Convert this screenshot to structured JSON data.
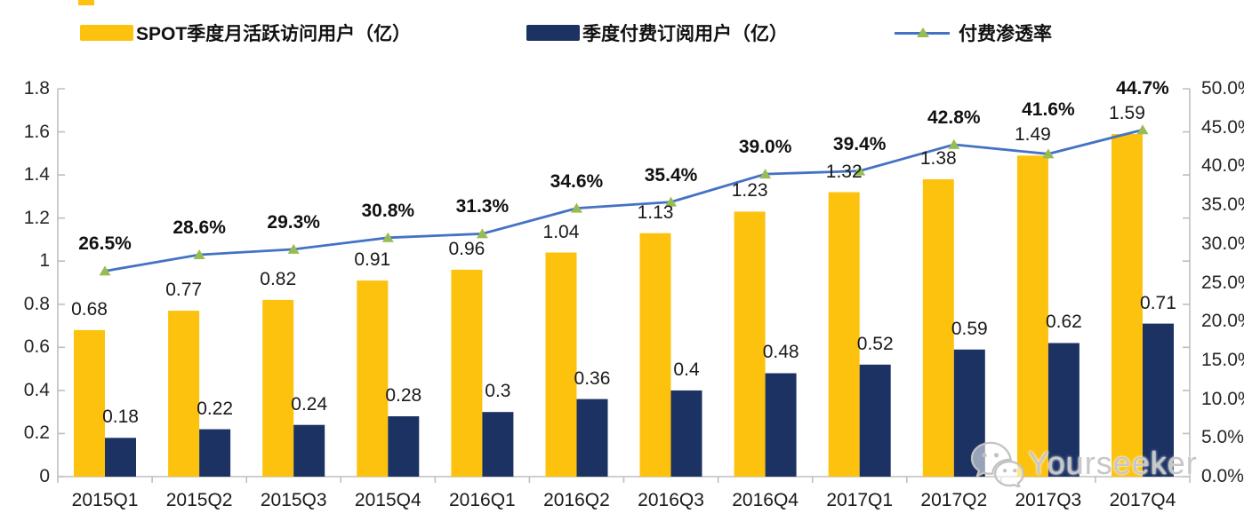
{
  "legend": {
    "items": [
      {
        "label": "SPOT季度月活跃访问用户（亿）",
        "swatch": "bar",
        "color": "#FCC20E"
      },
      {
        "label": "季度付费订阅用户（亿）",
        "swatch": "bar",
        "color": "#1C3263"
      },
      {
        "label": "付费渗透率",
        "swatch": "line",
        "line_color": "#4472C4",
        "marker": "triangle-up",
        "marker_color": "#97BC53"
      }
    ]
  },
  "watermark": {
    "icon": "wechat-icon",
    "text": "Yourseeker"
  },
  "chart_data": {
    "type": "bar",
    "subtype": "grouped-bars-plus-line-dual-axis",
    "title": "",
    "categories": [
      "2015Q1",
      "2015Q2",
      "2015Q3",
      "2015Q4",
      "2016Q1",
      "2016Q2",
      "2016Q3",
      "2016Q4",
      "2017Q1",
      "2017Q2",
      "2017Q3",
      "2017Q4"
    ],
    "series": [
      {
        "name": "SPOT季度月活跃访问用户（亿）",
        "type": "bar",
        "yaxis": "left",
        "color": "#FCC20E",
        "values": [
          0.68,
          0.77,
          0.82,
          0.91,
          0.96,
          1.04,
          1.13,
          1.23,
          1.32,
          1.38,
          1.49,
          1.59
        ],
        "labels": [
          "0.68",
          "0.77",
          "0.82",
          "0.91",
          "0.96",
          "1.04",
          "1.13",
          "1.23",
          "1.32",
          "1.38",
          "1.49",
          "1.59"
        ]
      },
      {
        "name": "季度付费订阅用户（亿）",
        "type": "bar",
        "yaxis": "left",
        "color": "#1C3263",
        "values": [
          0.18,
          0.22,
          0.24,
          0.28,
          0.3,
          0.36,
          0.4,
          0.48,
          0.52,
          0.59,
          0.62,
          0.71
        ],
        "labels": [
          "0.18",
          "0.22",
          "0.24",
          "0.28",
          "0.3",
          "0.36",
          "0.4",
          "0.48",
          "0.52",
          "0.59",
          "0.62",
          "0.71"
        ]
      },
      {
        "name": "付费渗透率",
        "type": "line",
        "yaxis": "right",
        "color": "#4472C4",
        "marker": "triangle-up",
        "marker_color": "#97BC53",
        "values": [
          26.5,
          28.6,
          29.3,
          30.8,
          31.3,
          34.6,
          35.4,
          39.0,
          39.4,
          42.8,
          41.6,
          44.7
        ],
        "labels": [
          "26.5%",
          "28.6%",
          "29.3%",
          "30.8%",
          "31.3%",
          "34.6%",
          "35.4%",
          "39.0%",
          "39.4%",
          "42.8%",
          "41.6%",
          "44.7%"
        ]
      }
    ],
    "left_axis": {
      "min": 0,
      "max": 1.8,
      "step": 0.2,
      "tick_labels": [
        "0",
        "0.2",
        "0.4",
        "0.6",
        "0.8",
        "1",
        "1.2",
        "1.4",
        "1.6",
        "1.8"
      ]
    },
    "right_axis": {
      "min": 0,
      "max": 50,
      "step": 5,
      "tick_labels": [
        "0.0%",
        "5.0%",
        "10.0%",
        "15.0%",
        "20.0%",
        "25.0%",
        "30.0%",
        "35.0%",
        "40.0%",
        "45.0%",
        "50.0%"
      ]
    },
    "grid": false,
    "legend_position": "top",
    "axis_color": "#BFBFBF",
    "label_color": "#1A1A1A"
  }
}
